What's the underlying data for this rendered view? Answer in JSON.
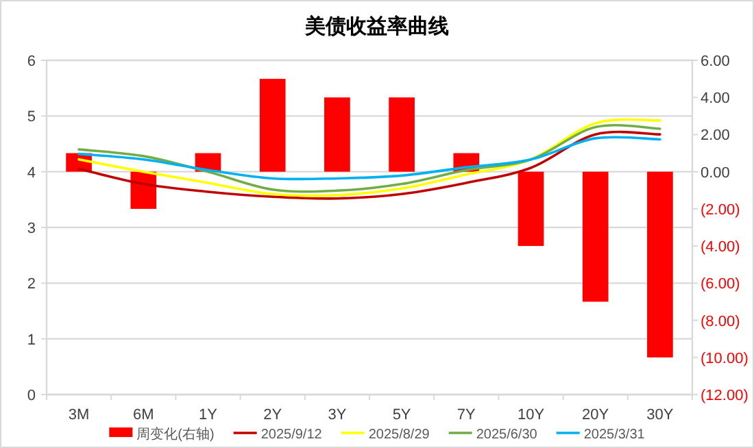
{
  "chart_data": {
    "type": "line",
    "title": "美债收益率曲线",
    "categories": [
      "3M",
      "6M",
      "1Y",
      "2Y",
      "3Y",
      "5Y",
      "7Y",
      "10Y",
      "20Y",
      "30Y"
    ],
    "series": [
      {
        "name": "周变化(右轴)",
        "type": "bar",
        "axis": "y2",
        "color": "#ff0000",
        "values": [
          1,
          -2,
          1,
          5,
          4,
          4,
          1,
          -4,
          -7,
          -10
        ]
      },
      {
        "name": "2025/9/12",
        "color": "#c00000",
        "values": [
          4.05,
          3.78,
          3.64,
          3.55,
          3.52,
          3.6,
          3.8,
          4.07,
          4.67,
          4.67
        ]
      },
      {
        "name": "2025/8/29",
        "color": "#ffff00",
        "values": [
          4.22,
          4.0,
          3.8,
          3.6,
          3.58,
          3.7,
          3.95,
          4.22,
          4.87,
          4.92
        ]
      },
      {
        "name": "2025/6/30",
        "color": "#70ad47",
        "values": [
          4.4,
          4.28,
          4.0,
          3.68,
          3.66,
          3.78,
          4.03,
          4.22,
          4.8,
          4.77
        ]
      },
      {
        "name": "2025/3/31",
        "color": "#00b0f0",
        "values": [
          4.32,
          4.22,
          4.03,
          3.88,
          3.88,
          3.93,
          4.08,
          4.22,
          4.6,
          4.58
        ]
      }
    ],
    "ylim": [
      0,
      6
    ],
    "yticks": [
      0,
      1,
      2,
      3,
      4,
      5,
      6
    ],
    "y2lim": [
      -12,
      6
    ],
    "y2ticks": [
      {
        "value": 6,
        "label": "6.00"
      },
      {
        "value": 4,
        "label": "4.00"
      },
      {
        "value": 2,
        "label": "2.00"
      },
      {
        "value": 0,
        "label": "0.00"
      },
      {
        "value": -2,
        "label": "(2.00)"
      },
      {
        "value": -4,
        "label": "(4.00)"
      },
      {
        "value": -6,
        "label": "(6.00)"
      },
      {
        "value": -8,
        "label": "(8.00)"
      },
      {
        "value": -10,
        "label": "(10.00)"
      },
      {
        "value": -12,
        "label": "(12.00)"
      }
    ],
    "grid": "y",
    "legend": "bottom"
  }
}
